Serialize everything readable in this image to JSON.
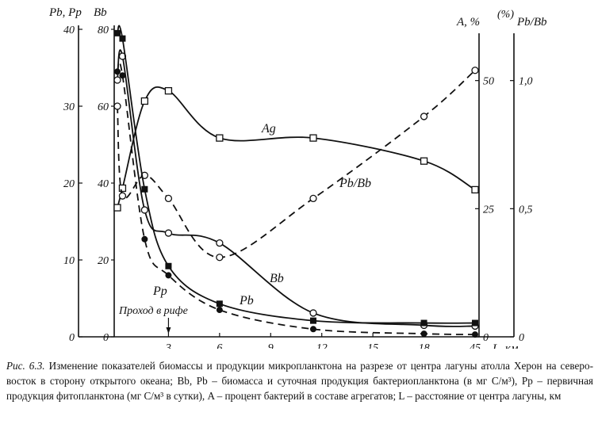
{
  "caption": {
    "figure_number": "Рис. 6.3.",
    "text": "Изменение показателей биомассы и продукции микропланктона на разрезе от центра лагуны атолла Херон на северо-восток в сторону открытого океана; Bb, Pb – биомасса и суточная продукция бактериопланктона (в мг C/м³), Pp – первичная продукция фитопланктона (мг C/м³ в сутки), A – процент бактерий в составе агрегатов; L – расстояние от центра лагуны, км"
  },
  "chart_data": {
    "type": "line",
    "axes": {
      "left_outer": {
        "label": "Pb, Pp",
        "ticks": [
          0,
          10,
          20,
          30,
          40
        ],
        "range": [
          0,
          40
        ]
      },
      "left_inner": {
        "label": "Bb",
        "ticks": [
          0,
          20,
          40,
          60,
          80
        ],
        "range": [
          0,
          80
        ]
      },
      "right_inner": {
        "label": "A, %",
        "label_extra": "(%)",
        "ticks": [
          0,
          25,
          50
        ],
        "range": [
          0,
          60
        ]
      },
      "right_outer": {
        "label": "Pb/Bb",
        "ticks": [
          "0",
          "0,5",
          "1,0"
        ],
        "range": [
          0,
          1.2
        ]
      },
      "x": {
        "label": "L, км",
        "ticks": [
          "3",
          "6",
          "9",
          "12",
          "15",
          "18",
          "45"
        ],
        "tick_values": [
          3,
          6,
          9,
          12,
          15,
          18,
          21
        ]
      }
    },
    "annotation": {
      "text": "Проход в рифе",
      "x": 3
    },
    "series": [
      {
        "name": "Ag",
        "axis": "right_inner",
        "marker": "square-open",
        "style": "solid",
        "x": [
          0,
          0.3,
          1.6,
          3,
          6,
          11.5,
          18,
          21
        ],
        "y": [
          25.2,
          29,
          46,
          48,
          38.8,
          38.8,
          34.3,
          28.7
        ]
      },
      {
        "name": "Pb/Bb",
        "axis": "right_outer",
        "marker": "circle-open",
        "style": "dashed",
        "x": [
          0,
          0.3,
          1.6,
          3,
          6,
          11.5,
          18,
          21
        ],
        "y": [
          0.9,
          0.55,
          0.63,
          0.54,
          0.31,
          0.54,
          0.86,
          1.04
        ]
      },
      {
        "name": "Bb",
        "axis": "left_inner",
        "marker": "circle-open",
        "style": "solid",
        "x": [
          0,
          0.3,
          1.6,
          3,
          6,
          11.5,
          18,
          21
        ],
        "y": [
          66.8,
          73,
          33,
          27,
          24.4,
          6.2,
          3,
          2.8
        ]
      },
      {
        "name": "Pb",
        "axis": "left_outer",
        "marker": "square-filled",
        "style": "solid",
        "x": [
          0,
          0.3,
          1.6,
          3,
          6,
          11.5,
          18,
          21
        ],
        "y": [
          39.5,
          38.8,
          19.2,
          9.2,
          4.3,
          2.1,
          1.8,
          1.8
        ]
      },
      {
        "name": "Pp",
        "axis": "left_outer",
        "marker": "circle-filled",
        "style": "dashed",
        "x": [
          0,
          0.3,
          1.6,
          3,
          6,
          11.5,
          18,
          21
        ],
        "y": [
          34.5,
          34,
          12.7,
          8,
          3.5,
          1,
          0.4,
          0.3
        ]
      }
    ],
    "legend": "none",
    "grid": false
  }
}
